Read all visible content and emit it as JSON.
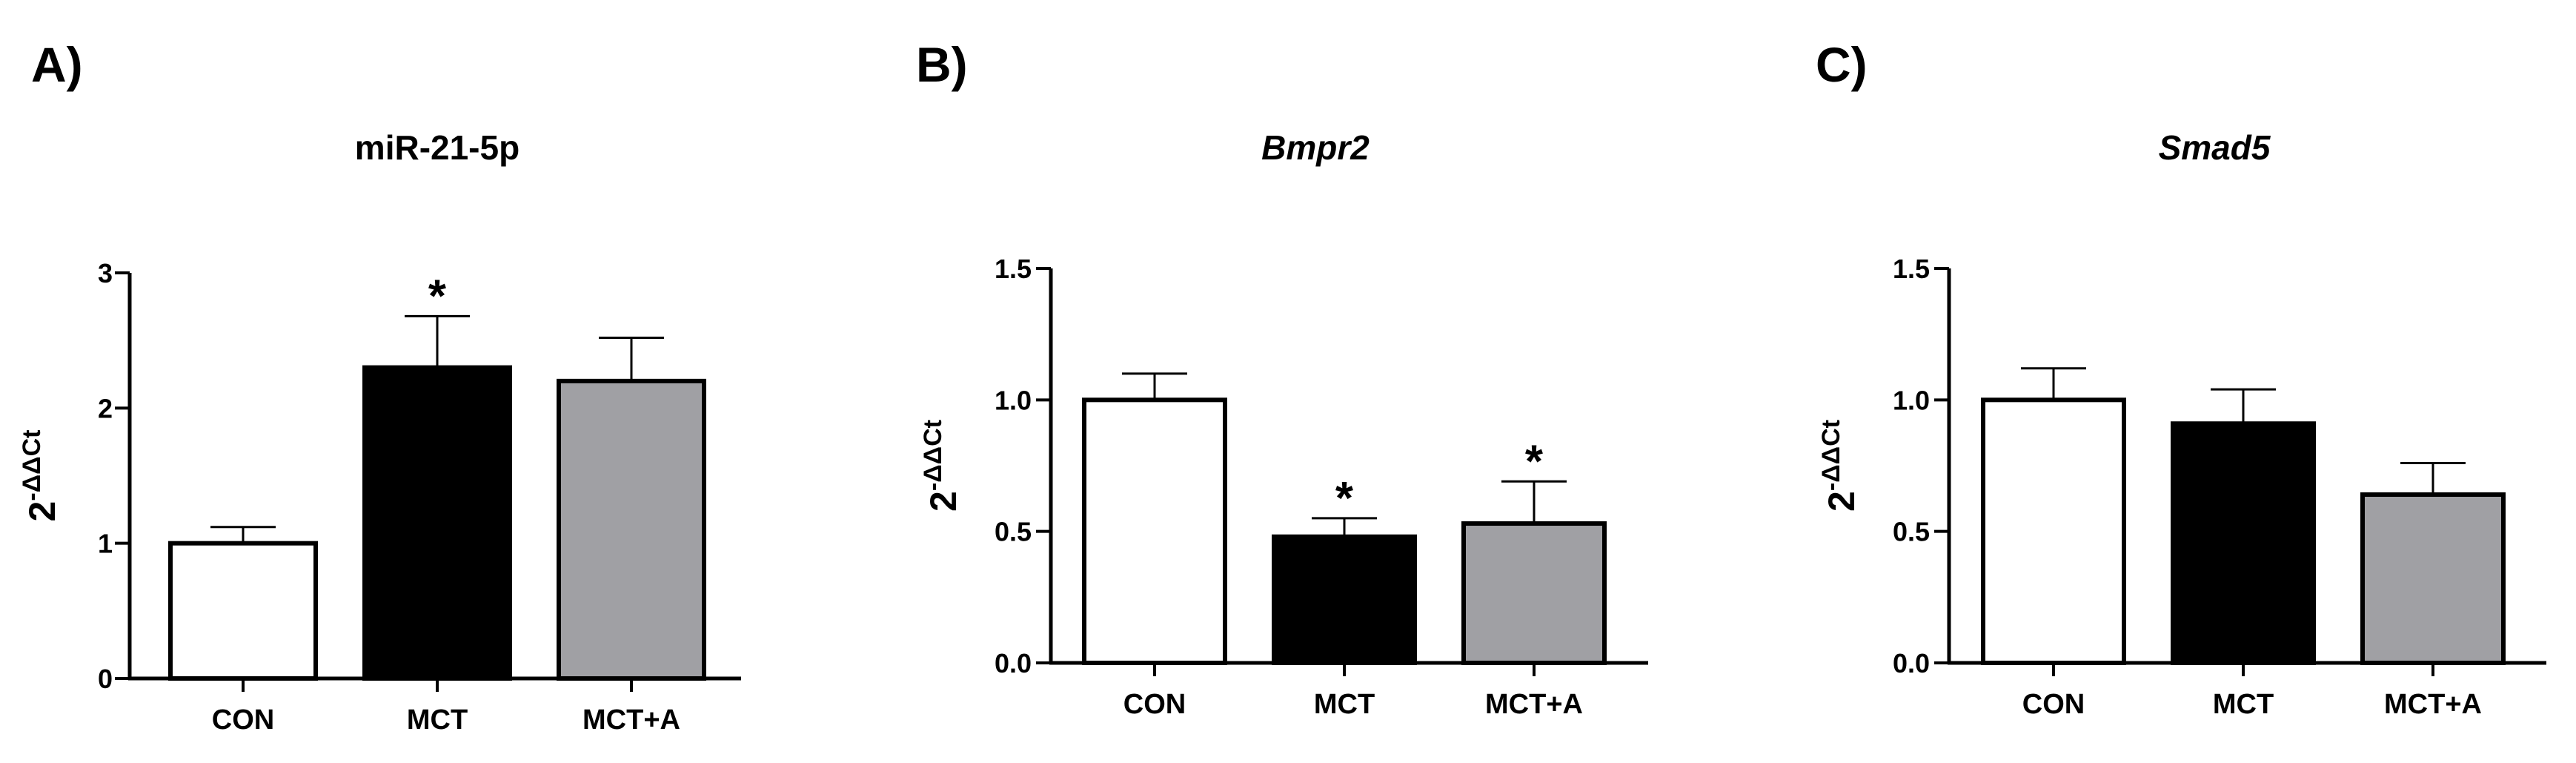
{
  "colors": {
    "axis": "#000000",
    "stroke": "#000000",
    "background": "#ffffff"
  },
  "chart_data": [
    {
      "panel_label": "A)",
      "title": "miR-21-5p",
      "title_style": "bold",
      "type": "bar",
      "categories": [
        "CON",
        "MCT",
        "MCT+A"
      ],
      "values": [
        1.0,
        2.3,
        2.2
      ],
      "errors": [
        0.12,
        0.38,
        0.32
      ],
      "fills": [
        "#ffffff",
        "#000000",
        "#a0a0a4"
      ],
      "significance": [
        "",
        "*",
        ""
      ],
      "ylabel": "2-ΔΔCt",
      "ylabel_base": "2",
      "ylabel_sup": "-ΔΔCt",
      "ylim": [
        0,
        3
      ],
      "yticks": [
        0,
        1,
        2,
        3
      ],
      "ytick_labels": [
        "0",
        "1",
        "2",
        "3"
      ],
      "grid": false
    },
    {
      "panel_label": "B)",
      "title": "Bmpr2",
      "title_style": "bold-italic",
      "type": "bar",
      "categories": [
        "CON",
        "MCT",
        "MCT+A"
      ],
      "values": [
        1.0,
        0.48,
        0.53
      ],
      "errors": [
        0.1,
        0.07,
        0.16
      ],
      "fills": [
        "#ffffff",
        "#000000",
        "#a0a0a4"
      ],
      "significance": [
        "",
        "*",
        "*"
      ],
      "ylabel": "2-ΔΔCt",
      "ylabel_base": "2",
      "ylabel_sup": "-ΔΔCt",
      "ylim": [
        0,
        1.5
      ],
      "yticks": [
        0,
        0.5,
        1.0,
        1.5
      ],
      "ytick_labels": [
        "0.0",
        "0.5",
        "1.0",
        "1.5"
      ],
      "grid": false
    },
    {
      "panel_label": "C)",
      "title": "Smad5",
      "title_style": "bold-italic",
      "type": "bar",
      "categories": [
        "CON",
        "MCT",
        "MCT+A"
      ],
      "values": [
        1.0,
        0.91,
        0.64
      ],
      "errors": [
        0.12,
        0.13,
        0.12
      ],
      "fills": [
        "#ffffff",
        "#000000",
        "#a0a0a4"
      ],
      "significance": [
        "",
        "",
        ""
      ],
      "ylabel": "2-ΔΔCt",
      "ylabel_base": "2",
      "ylabel_sup": "-ΔΔCt",
      "ylim": [
        0,
        1.5
      ],
      "yticks": [
        0,
        0.5,
        1.0,
        1.5
      ],
      "ytick_labels": [
        "0.0",
        "0.5",
        "1.0",
        "1.5"
      ],
      "grid": false
    }
  ]
}
